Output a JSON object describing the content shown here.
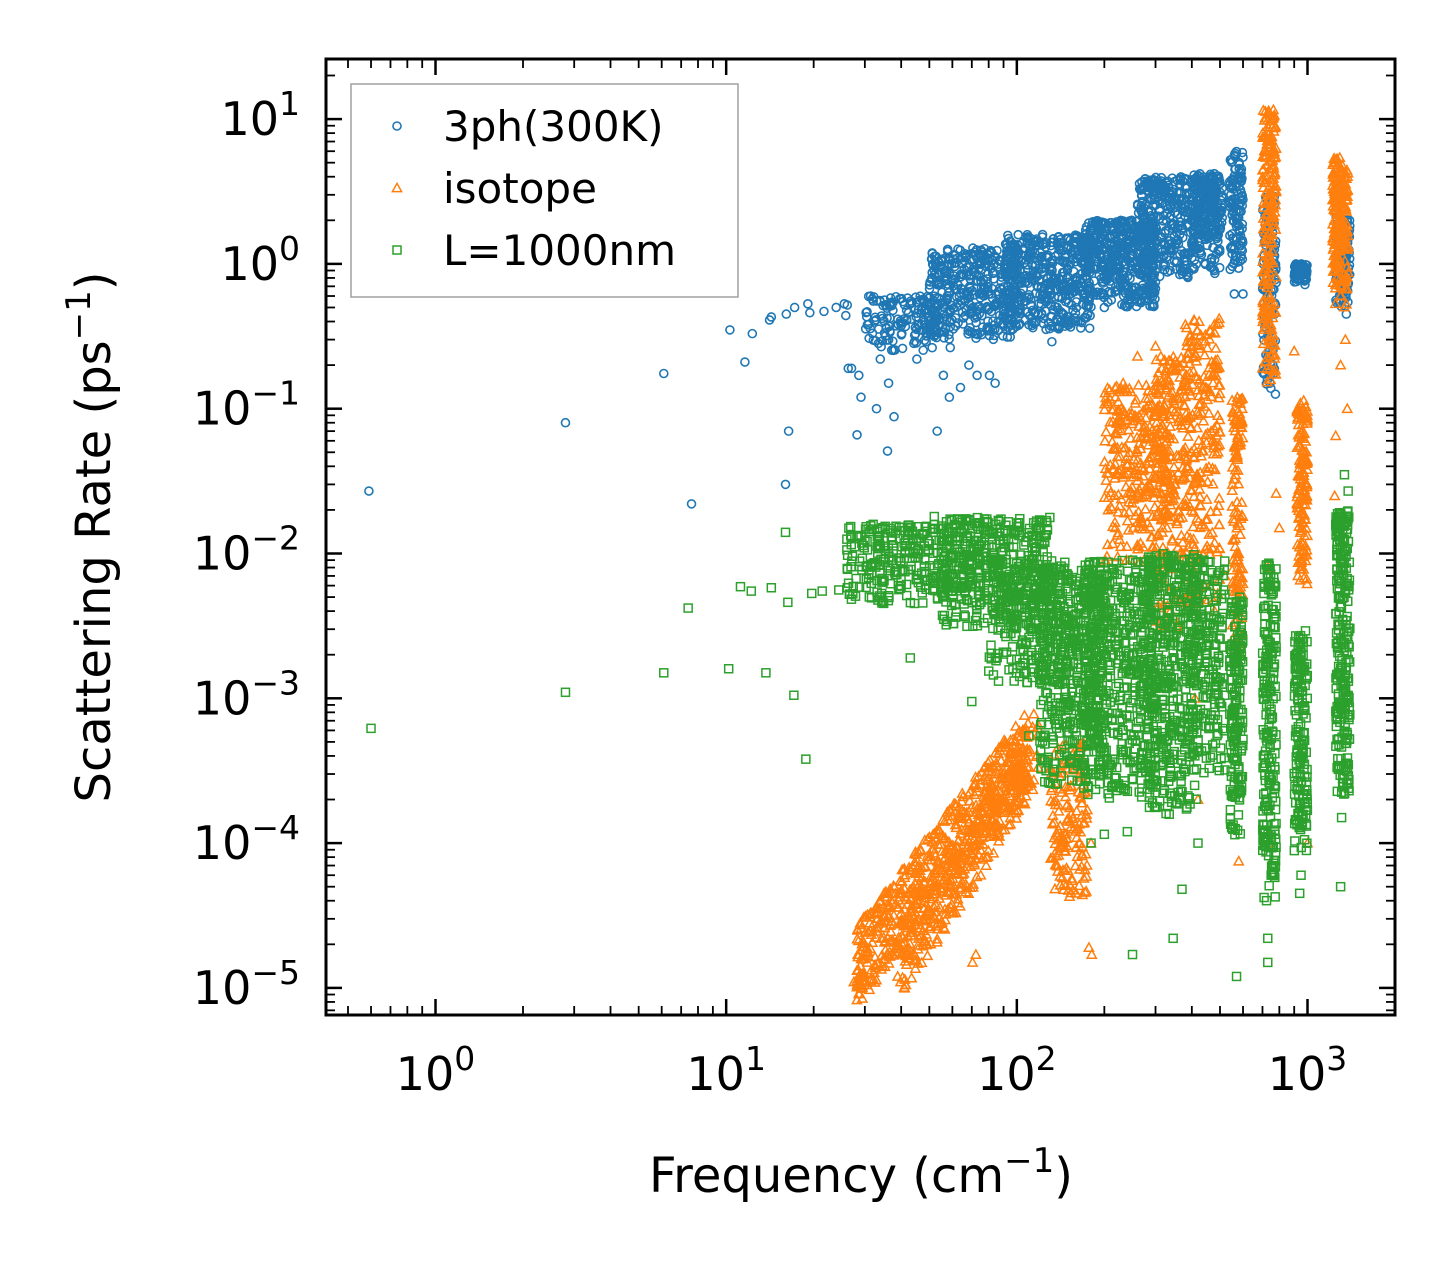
{
  "chart_data": {
    "type": "scatter",
    "title": "",
    "xlabel": "Frequency (cm",
    "xlabel_sup": "−1",
    "xlabel_end": ")",
    "ylabel": "Scattering Rate (ps",
    "ylabel_sup": "−1",
    "ylabel_end": ")",
    "xscale": "log",
    "yscale": "log",
    "xlim": [
      0.42,
      2000
    ],
    "ylim": [
      6.5e-06,
      26
    ],
    "x_ticks": [
      {
        "value": 1,
        "base": "10",
        "exp": "0"
      },
      {
        "value": 10,
        "base": "10",
        "exp": "1"
      },
      {
        "value": 100,
        "base": "10",
        "exp": "2"
      },
      {
        "value": 1000,
        "base": "10",
        "exp": "3"
      }
    ],
    "y_ticks": [
      {
        "value": 1e-05,
        "base": "10",
        "exp": "−5"
      },
      {
        "value": 0.0001,
        "base": "10",
        "exp": "−4"
      },
      {
        "value": 0.001,
        "base": "10",
        "exp": "−3"
      },
      {
        "value": 0.01,
        "base": "10",
        "exp": "−2"
      },
      {
        "value": 0.1,
        "base": "10",
        "exp": "−1"
      },
      {
        "value": 1,
        "base": "10",
        "exp": "0"
      },
      {
        "value": 10,
        "base": "10",
        "exp": "1"
      }
    ],
    "legend_position": "top-left",
    "series": [
      {
        "name": "3ph(300K)",
        "marker": "circle",
        "color": "#1f77b4",
        "points": [
          [
            0.59,
            0.027
          ],
          [
            2.8,
            0.08
          ],
          [
            6.1,
            0.175
          ],
          [
            7.6,
            0.022
          ],
          [
            10.3,
            0.35
          ],
          [
            11.6,
            0.21
          ],
          [
            12.3,
            0.33
          ],
          [
            14.1,
            0.41
          ],
          [
            14.3,
            0.43
          ],
          [
            16.1,
            0.45
          ],
          [
            16.4,
            0.07
          ],
          [
            16.0,
            0.03
          ],
          [
            17.2,
            0.5
          ],
          [
            19.1,
            0.53
          ],
          [
            19.4,
            0.46
          ],
          [
            21.7,
            0.47
          ],
          [
            23.9,
            0.5
          ],
          [
            25.5,
            0.53
          ],
          [
            26.1,
            0.52
          ],
          [
            25.8,
            0.44
          ],
          [
            26.3,
            0.19
          ],
          [
            27.0,
            0.19
          ],
          [
            28.6,
            0.17
          ],
          [
            28.2,
            0.066
          ],
          [
            29.1,
            0.12
          ],
          [
            30.6,
            0.38
          ],
          [
            31.4,
            0.6
          ],
          [
            32.9,
            0.1
          ],
          [
            33.9,
            0.22
          ],
          [
            35.9,
            0.051
          ],
          [
            36.2,
            0.15
          ],
          [
            37.8,
            0.088
          ],
          [
            40.2,
            0.33
          ],
          [
            45.3,
            0.22
          ],
          [
            49.0,
            0.35
          ],
          [
            53.2,
            0.07
          ],
          [
            55.9,
            0.17
          ],
          [
            58.6,
            0.12
          ],
          [
            64.0,
            0.14
          ],
          [
            68.4,
            0.2
          ],
          [
            73.0,
            0.17
          ],
          [
            80.5,
            0.17
          ],
          [
            84.2,
            0.15
          ],
          [
            92.0,
            0.35
          ],
          [
            110.1,
            0.38
          ],
          [
            132.0,
            0.29
          ],
          [
            150.2,
            0.4
          ],
          [
            175.0,
            0.45
          ],
          [
            200.0,
            0.5
          ],
          [
            245.0,
            0.6
          ],
          [
            300.0,
            0.75
          ],
          [
            400.0,
            1.1
          ],
          [
            480.0,
            0.86
          ],
          [
            560.0,
            0.62
          ],
          [
            600.0,
            0.62
          ],
          [
            760.0,
            0.2
          ],
          [
            980.0,
            0.72
          ],
          [
            1360.0,
            0.45
          ]
        ],
        "clouds": [
          {
            "x": [
              30,
              60
            ],
            "y": [
              0.25,
              0.6
            ],
            "n": 160
          },
          {
            "x": [
              50,
              100
            ],
            "y": [
              0.3,
              1.3
            ],
            "n": 380
          },
          {
            "x": [
              90,
              180
            ],
            "y": [
              0.35,
              1.6
            ],
            "n": 460
          },
          {
            "x": [
              170,
              300
            ],
            "y": [
              0.5,
              2.0
            ],
            "n": 460
          },
          {
            "x": [
              260,
              500
            ],
            "y": [
              0.8,
              4.0
            ],
            "n": 460
          },
          {
            "x": [
              400,
              510
            ],
            "y": [
              1.6,
              4.2
            ],
            "n": 140
          },
          {
            "x": [
              540,
              600
            ],
            "y": [
              0.9,
              6.0
            ],
            "n": 120
          },
          {
            "x": [
              700,
              780
            ],
            "y": [
              0.12,
              3.0
            ],
            "n": 130
          },
          {
            "x": [
              900,
              1000
            ],
            "y": [
              0.75,
              1.0
            ],
            "n": 70
          },
          {
            "x": [
              1250,
              1400
            ],
            "y": [
              0.5,
              2.1
            ],
            "n": 110
          }
        ]
      },
      {
        "name": "isotope",
        "marker": "triangle",
        "color": "#ff7f0e",
        "points": [
          [
            27.5,
            1.1e-05
          ],
          [
            30.6,
            1.5e-05
          ],
          [
            35.2,
            1.4e-05
          ],
          [
            38.9,
            1.2e-05
          ],
          [
            39.8,
            1.1e-05
          ],
          [
            49.2,
            2e-05
          ],
          [
            70.4,
            1.5e-05
          ],
          [
            72.3,
            1.7e-05
          ],
          [
            177.0,
            1.9e-05
          ],
          [
            181.0,
            1.7e-05
          ],
          [
            160.0,
            4.5e-05
          ],
          [
            580.0,
            7.5e-05
          ],
          [
            740.0,
            0.0001
          ],
          [
            1000.0,
            0.0001
          ],
          [
            1250.0,
            0.065
          ],
          [
            1240.0,
            0.025
          ],
          [
            1370.0,
            0.1
          ],
          [
            900.0,
            0.25
          ],
          [
            1300.0,
            0.2
          ],
          [
            1350.0,
            0.3
          ],
          [
            780.0,
            0.026
          ],
          [
            520.0,
            0.007
          ],
          [
            730.0,
            0.008
          ],
          [
            410.0,
            0.001
          ],
          [
            420.0,
            0.0002
          ],
          [
            180.0,
            0.0001
          ],
          [
            260.0,
            0.23
          ],
          [
            300.0,
            0.27
          ],
          [
            800.0,
            0.015
          ]
        ],
        "clouds": [
          {
            "x": [
              28,
              110
            ],
            "y": [
              1.4e-05,
              0.00045
            ],
            "n": 600,
            "diag": true
          },
          {
            "x": [
              40,
              120
            ],
            "y": [
              1.5e-05,
              0.0005
            ],
            "n": 300,
            "diag": true
          },
          {
            "x": [
              130,
              175
            ],
            "y": [
              4e-05,
              0.0005
            ],
            "n": 160
          },
          {
            "x": [
              200,
              330
            ],
            "y": [
              0.008,
              0.15
            ],
            "n": 300
          },
          {
            "x": [
              300,
              380
            ],
            "y": [
              0.003,
              0.23
            ],
            "n": 220
          },
          {
            "x": [
              380,
              500
            ],
            "y": [
              0.004,
              0.42
            ],
            "n": 240
          },
          {
            "x": [
              550,
              600
            ],
            "y": [
              0.002,
              0.12
            ],
            "n": 120
          },
          {
            "x": [
              700,
              780
            ],
            "y": [
              0.15,
              12.0
            ],
            "n": 220
          },
          {
            "x": [
              920,
              1000
            ],
            "y": [
              0.006,
              0.12
            ],
            "n": 150
          },
          {
            "x": [
              1220,
              1380
            ],
            "y": [
              0.5,
              5.5
            ],
            "n": 220
          }
        ]
      },
      {
        "name": "L=1000nm",
        "marker": "square",
        "color": "#2ca02c",
        "points": [
          [
            0.6,
            0.00062
          ],
          [
            2.8,
            0.0011
          ],
          [
            6.1,
            0.0015
          ],
          [
            7.4,
            0.0042
          ],
          [
            10.2,
            0.0016
          ],
          [
            11.2,
            0.0059
          ],
          [
            12.2,
            0.0055
          ],
          [
            13.7,
            0.0015
          ],
          [
            14.3,
            0.0058
          ],
          [
            16.0,
            0.014
          ],
          [
            16.3,
            0.0046
          ],
          [
            17.1,
            0.00105
          ],
          [
            18.8,
            0.00038
          ],
          [
            19.7,
            0.0053
          ],
          [
            21.4,
            0.0055
          ],
          [
            24.4,
            0.0056
          ],
          [
            26.1,
            0.0058
          ],
          [
            43.0,
            0.0019
          ],
          [
            52.0,
            0.018
          ],
          [
            62.0,
            0.015
          ],
          [
            70.0,
            0.00095
          ],
          [
            110.0,
            0.00055
          ],
          [
            250.0,
            1.7e-05
          ],
          [
            345.0,
            2.2e-05
          ],
          [
            370.0,
            4.8e-05
          ],
          [
            520.0,
            0.00032
          ],
          [
            570.0,
            1.2e-05
          ],
          [
            730.0,
            1.5e-05
          ],
          [
            730.0,
            2.2e-05
          ],
          [
            940.0,
            4.5e-05
          ],
          [
            950.0,
            6e-05
          ],
          [
            1300.0,
            5e-05
          ],
          [
            1340.0,
            0.035
          ],
          [
            1380.0,
            0.027
          ],
          [
            1370.0,
            0.00033
          ],
          [
            1310.0,
            0.00015
          ],
          [
            1320.0,
            0.00028
          ],
          [
            420.0,
            0.0001
          ],
          [
            240.0,
            0.00012
          ],
          [
            180.0,
            0.0001
          ],
          [
            200.0,
            0.000115
          ]
        ],
        "clouds": [
          {
            "x": [
              26,
              60
            ],
            "y": [
              0.0045,
              0.016
            ],
            "n": 260
          },
          {
            "x": [
              55,
              130
            ],
            "y": [
              0.003,
              0.018
            ],
            "n": 420
          },
          {
            "x": [
              80,
              150
            ],
            "y": [
              0.0012,
              0.009
            ],
            "n": 240
          },
          {
            "x": [
              120,
              200
            ],
            "y": [
              0.00025,
              0.008
            ],
            "n": 500
          },
          {
            "x": [
              170,
              300
            ],
            "y": [
              0.0002,
              0.009
            ],
            "n": 520
          },
          {
            "x": [
              280,
              420
            ],
            "y": [
              0.00015,
              0.01
            ],
            "n": 460
          },
          {
            "x": [
              400,
              520
            ],
            "y": [
              0.0003,
              0.009
            ],
            "n": 200
          },
          {
            "x": [
              540,
              600
            ],
            "y": [
              0.0001,
              0.005
            ],
            "n": 180
          },
          {
            "x": [
              700,
              780
            ],
            "y": [
              4e-05,
              0.009
            ],
            "n": 220
          },
          {
            "x": [
              900,
              1000
            ],
            "y": [
              8e-05,
              0.003
            ],
            "n": 170
          },
          {
            "x": [
              1250,
              1400
            ],
            "y": [
              0.0002,
              0.02
            ],
            "n": 260
          }
        ]
      }
    ]
  }
}
